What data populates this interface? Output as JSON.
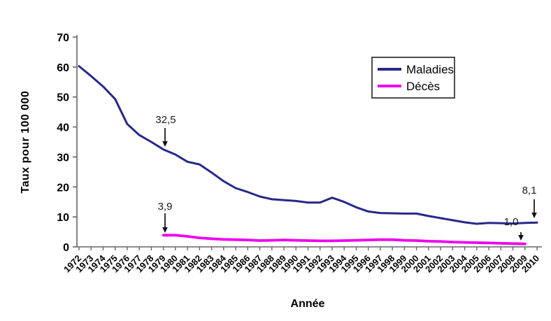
{
  "chart_data": {
    "type": "line",
    "title": "",
    "xlabel": "Année",
    "ylabel": "Taux pour 100 000",
    "ylim": [
      0,
      70
    ],
    "yticks": [
      0,
      10,
      20,
      30,
      40,
      50,
      60,
      70
    ],
    "grid": false,
    "legend_position": "top-right",
    "categories": [
      "1972",
      "1973",
      "1974",
      "1975",
      "1976",
      "1977",
      "1978",
      "1979",
      "1980",
      "1981",
      "1982",
      "1983",
      "1984",
      "1985",
      "1986",
      "1987",
      "1988",
      "1989",
      "1990",
      "1991",
      "1992",
      "1993",
      "1994",
      "1995",
      "1996",
      "1997",
      "1998",
      "1999",
      "2000",
      "2001",
      "2002",
      "2003",
      "2004",
      "2005",
      "2006",
      "2007",
      "2008",
      "2009",
      "2010"
    ],
    "series": [
      {
        "name": "Maladies",
        "color": "#28288A",
        "start_year": 1972,
        "values": [
          60.3,
          57.0,
          53.5,
          49.3,
          41.0,
          37.3,
          35.0,
          32.5,
          30.8,
          28.4,
          27.5,
          24.8,
          21.9,
          19.6,
          18.3,
          16.8,
          15.9,
          15.6,
          15.3,
          14.8,
          14.8,
          16.4,
          15.0,
          13.2,
          11.8,
          11.3,
          11.2,
          11.1,
          11.1,
          10.3,
          9.6,
          8.9,
          8.2,
          7.7,
          8.0,
          7.9,
          7.8,
          8.0,
          8.1
        ]
      },
      {
        "name": "Décès",
        "color": "#EE00EE",
        "start_year": 1979,
        "values": [
          3.9,
          3.9,
          3.5,
          3.0,
          2.7,
          2.5,
          2.4,
          2.3,
          2.1,
          2.2,
          2.3,
          2.2,
          2.1,
          2.0,
          2.0,
          2.1,
          2.2,
          2.3,
          2.4,
          2.4,
          2.2,
          2.1,
          1.9,
          1.8,
          1.6,
          1.5,
          1.4,
          1.3,
          1.2,
          1.1,
          1.0
        ]
      }
    ],
    "annotations": [
      {
        "label": "32,5",
        "series": 0,
        "year": 1979
      },
      {
        "label": "3,9",
        "series": 1,
        "year": 1979
      },
      {
        "label": "8,1",
        "series": 0,
        "year": 2010
      },
      {
        "label": "1,0",
        "series": 1,
        "year": 2009
      }
    ]
  }
}
